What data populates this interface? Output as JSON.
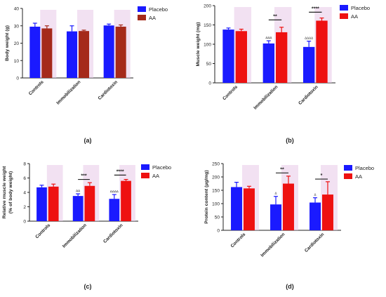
{
  "colors": {
    "placebo": "#1a1aff",
    "aa": "#ee1111",
    "aa_dark": "#a52a1a",
    "shade": "#e8c8e8",
    "axis": "#222222"
  },
  "chart_data": [
    {
      "type": "bar",
      "panel_label": "(a)",
      "ylabel": "Body weight (g)",
      "ylim": [
        0,
        40
      ],
      "yticks": [
        0,
        10,
        20,
        30,
        40
      ],
      "categories": [
        "Controls",
        "Immobilization",
        "Cardiotoxin"
      ],
      "series": [
        {
          "name": "Placebo",
          "color": "#1a1aff",
          "values": [
            29.5,
            26.8,
            30.2
          ],
          "errors": [
            2.0,
            3.2,
            0.8
          ]
        },
        {
          "name": "AA",
          "color": "#a52a1a",
          "values": [
            28.5,
            27.0,
            29.5
          ],
          "errors": [
            1.5,
            0.5,
            1.0
          ]
        }
      ],
      "legend": "top-right",
      "grid": false,
      "significance": [],
      "group_marks": []
    },
    {
      "type": "bar",
      "panel_label": "(b)",
      "ylabel": "Muscle weight (mg)",
      "ylim": [
        0,
        200
      ],
      "yticks": [
        0,
        50,
        100,
        150,
        200
      ],
      "categories": [
        "Controls",
        "Immobilization",
        "Cardiotoxin"
      ],
      "series": [
        {
          "name": "Placebo",
          "color": "#1a1aff",
          "values": [
            138,
            102,
            93
          ],
          "errors": [
            4,
            7,
            15
          ]
        },
        {
          "name": "AA",
          "color": "#ee1111",
          "values": [
            134,
            131,
            161
          ],
          "errors": [
            5,
            13,
            7
          ]
        }
      ],
      "legend": "top-right",
      "grid": false,
      "significance": [
        {
          "category": 1,
          "label": "**",
          "y": 163
        },
        {
          "category": 2,
          "label": "****",
          "y": 183
        }
      ],
      "group_marks": [
        {
          "category": 1,
          "series": 0,
          "label": "ΔΔΔ"
        },
        {
          "category": 2,
          "series": 0,
          "label": "ΔΔΔΔ"
        }
      ]
    },
    {
      "type": "bar",
      "panel_label": "(c)",
      "ylabel": "Relative muscle weight",
      "ylabel2": "(% of body weight)",
      "ylim": [
        0,
        8
      ],
      "yticks": [
        0,
        2,
        4,
        6,
        8
      ],
      "categories": [
        "Controls",
        "Immobilization",
        "Cardiotoxin"
      ],
      "series": [
        {
          "name": "Placebo",
          "color": "#1a1aff",
          "values": [
            4.7,
            3.5,
            3.1
          ],
          "errors": [
            0.3,
            0.3,
            0.6
          ]
        },
        {
          "name": "AA",
          "color": "#ee1111",
          "values": [
            4.8,
            4.9,
            5.6
          ],
          "errors": [
            0.35,
            0.45,
            0.2
          ]
        }
      ],
      "legend": "top-right",
      "grid": false,
      "significance": [
        {
          "category": 1,
          "label": "***",
          "y": 5.8
        },
        {
          "category": 2,
          "label": "****",
          "y": 6.4
        }
      ],
      "group_marks": [
        {
          "category": 1,
          "series": 0,
          "label": "ΔΔ"
        },
        {
          "category": 2,
          "series": 0,
          "label": "ΔΔΔΔ"
        }
      ]
    },
    {
      "type": "bar",
      "panel_label": "(d)",
      "ylabel": "Protein content (µg/mg)",
      "ylim": [
        0,
        250
      ],
      "yticks": [
        0,
        50,
        100,
        150,
        200,
        250
      ],
      "categories": [
        "Controls",
        "Immobilization",
        "Cardiotoxin"
      ],
      "series": [
        {
          "name": "Placebo",
          "color": "#1a1aff",
          "values": [
            162,
            97,
            104
          ],
          "errors": [
            18,
            30,
            18
          ]
        },
        {
          "name": "AA",
          "color": "#ee1111",
          "values": [
            157,
            175,
            134
          ],
          "errors": [
            8,
            28,
            48
          ]
        }
      ],
      "legend": "top-right",
      "grid": false,
      "significance": [
        {
          "category": 1,
          "label": "**",
          "y": 215
        },
        {
          "category": 2,
          "label": "*",
          "y": 192
        }
      ],
      "group_marks": [
        {
          "category": 1,
          "series": 0,
          "label": "Δ"
        },
        {
          "category": 2,
          "series": 0,
          "label": "Δ"
        }
      ]
    }
  ]
}
